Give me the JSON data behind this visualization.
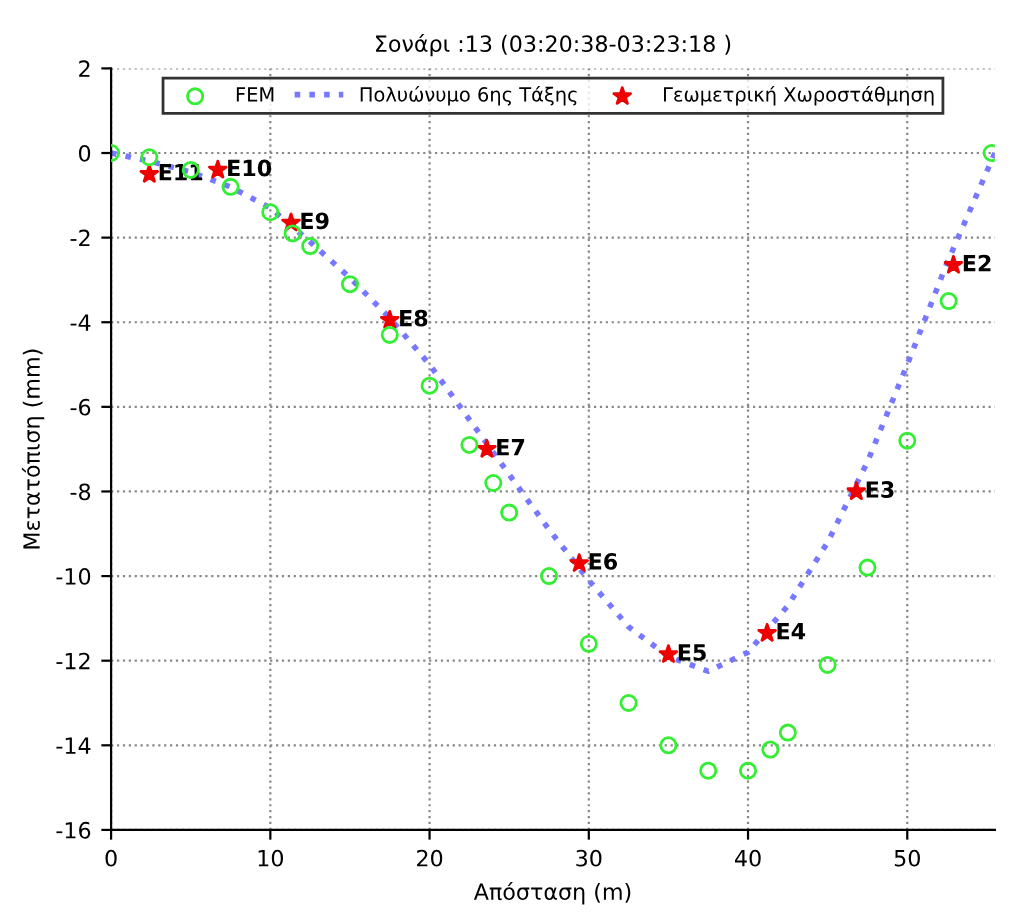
{
  "chart_data": {
    "type": "scatter",
    "title": "Σονάρι :13 (03:20:38-03:23:18 )",
    "xlabel": "Απόσταση (m)",
    "ylabel": "Μετατόπιση (mm)",
    "xlim": [
      0,
      55.5
    ],
    "ylim": [
      -16,
      2
    ],
    "xticks": [
      0,
      10,
      20,
      30,
      40,
      50
    ],
    "yticks": [
      -16,
      -14,
      -12,
      -10,
      -8,
      -6,
      -4,
      -2,
      0,
      2
    ],
    "grid": true,
    "legend": "top",
    "series": [
      {
        "name": "FEM",
        "marker": "circle",
        "color": "#33ee33",
        "x": [
          0,
          2.4,
          5.0,
          7.5,
          10.0,
          11.4,
          12.5,
          15.0,
          17.5,
          20.0,
          22.5,
          24.0,
          25.0,
          27.5,
          30.0,
          32.5,
          35.0,
          37.5,
          40.0,
          41.4,
          42.5,
          45.0,
          47.5,
          50.0,
          52.6,
          55.3
        ],
        "values": [
          0,
          -0.1,
          -0.4,
          -0.8,
          -1.4,
          -1.9,
          -2.2,
          -3.1,
          -4.3,
          -5.5,
          -6.9,
          -7.8,
          -8.5,
          -10.0,
          -11.6,
          -13.0,
          -14.0,
          -14.6,
          -14.6,
          -14.1,
          -13.7,
          -12.1,
          -9.8,
          -6.8,
          -3.5,
          0
        ]
      },
      {
        "name": "Πολυώνυμο 6ης Τάξης",
        "type": "line",
        "line_style": "dotted",
        "marker": "none",
        "color": "#7777ff",
        "x": [
          0,
          2.5,
          5,
          7.5,
          10,
          12.5,
          15,
          17.5,
          20,
          22.5,
          25,
          27.5,
          30,
          32.5,
          35,
          37.5,
          40,
          42.5,
          45,
          47.5,
          50,
          52.5,
          55.5
        ],
        "values": [
          0,
          -0.2,
          -0.45,
          -0.8,
          -1.3,
          -2.1,
          -2.95,
          -3.9,
          -5.0,
          -6.3,
          -7.6,
          -8.9,
          -10.1,
          -11.2,
          -11.9,
          -12.25,
          -11.8,
          -10.7,
          -9.2,
          -7.3,
          -5.0,
          -2.6,
          0
        ]
      },
      {
        "name": "Γεωμετρική Χωροστάθμηση",
        "marker": "star",
        "color": "#ee0000",
        "x": [
          2.4,
          6.7,
          11.3,
          17.5,
          23.6,
          29.4,
          35.0,
          41.2,
          46.8,
          52.9
        ],
        "values": [
          -0.5,
          -0.4,
          -1.65,
          -3.95,
          -7.0,
          -9.7,
          -11.85,
          -11.35,
          -8.0,
          -2.65
        ]
      }
    ],
    "annotations": [
      {
        "text": "E11",
        "x": 2.4,
        "y": -0.5
      },
      {
        "text": "E10",
        "x": 6.7,
        "y": -0.4
      },
      {
        "text": "E9",
        "x": 11.3,
        "y": -1.65
      },
      {
        "text": "E8",
        "x": 17.5,
        "y": -3.95
      },
      {
        "text": "E7",
        "x": 23.6,
        "y": -7.0
      },
      {
        "text": "E6",
        "x": 29.4,
        "y": -9.7
      },
      {
        "text": "E5",
        "x": 35.0,
        "y": -11.85
      },
      {
        "text": "E4",
        "x": 41.2,
        "y": -11.35
      },
      {
        "text": "E3",
        "x": 46.8,
        "y": -8.0
      },
      {
        "text": "E2",
        "x": 52.9,
        "y": -2.65
      }
    ]
  }
}
